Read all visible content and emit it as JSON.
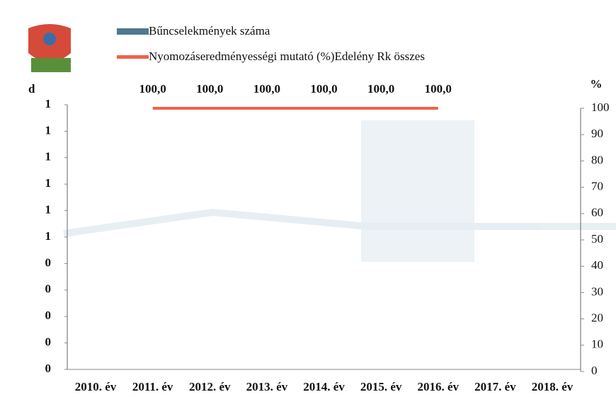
{
  "chart_data": {
    "type": "bar-line",
    "y_axis_label": "d",
    "y2_axis_label": "%",
    "categories": [
      "2010. év",
      "2011. év",
      "2012. év",
      "2013. év",
      "2014. év",
      "2015. év",
      "2016. év",
      "2017. év",
      "2018. év"
    ],
    "series": [
      {
        "name": "Bűncselekmények száma",
        "type": "bar",
        "color": "#4e7a8c",
        "values": [
          0,
          0,
          0,
          0,
          0,
          0,
          0,
          0,
          0
        ]
      },
      {
        "name": "Nyomozáseredményességi mutató (%)Edelény Rk összes",
        "type": "line",
        "axis": "y2",
        "color": "#f0624a",
        "values": [
          null,
          100,
          100,
          100,
          100,
          100,
          100,
          null,
          null
        ],
        "value_labels": [
          null,
          "100,0",
          "100,0",
          "100,0",
          "100,0",
          "100,0",
          "100,0",
          null,
          null
        ]
      }
    ],
    "ylim": [
      0,
      1
    ],
    "yticks": [
      1,
      {
        "value": 0.9,
        "label": "1"
      },
      {
        "value": 0.8,
        "label": "1"
      },
      {
        "value": 0.7,
        "label": "1"
      },
      {
        "value": 0.6,
        "label": "1"
      },
      {
        "value": 0.5,
        "label": "1"
      },
      {
        "value": 0.4,
        "label": "0"
      },
      {
        "value": 0.3,
        "label": "0"
      },
      {
        "value": 0.2,
        "label": "0"
      },
      {
        "value": 0.1,
        "label": "0"
      },
      0
    ],
    "y2lim": [
      0,
      100
    ],
    "y2ticks": [
      0,
      10,
      20,
      30,
      40,
      50,
      60,
      70,
      80,
      90,
      100
    ]
  }
}
